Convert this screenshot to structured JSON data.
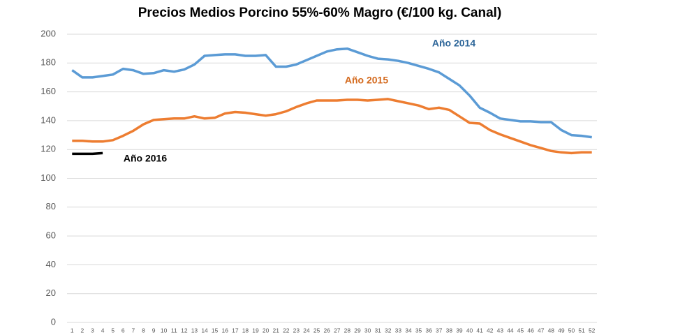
{
  "chart_data": {
    "type": "line",
    "title": "Precios Medios Porcino 55%-60%  Magro (€/100 kg. Canal)",
    "categories": [
      1,
      2,
      3,
      4,
      5,
      6,
      7,
      8,
      9,
      10,
      11,
      12,
      13,
      14,
      15,
      16,
      17,
      18,
      19,
      20,
      21,
      22,
      23,
      24,
      25,
      26,
      27,
      28,
      29,
      30,
      31,
      32,
      33,
      34,
      35,
      36,
      37,
      38,
      39,
      40,
      41,
      42,
      43,
      44,
      45,
      46,
      47,
      48,
      49,
      50,
      51,
      52
    ],
    "series": [
      {
        "name": "Año 2014",
        "color": "#5b9bd5",
        "label_color": "#2e6699",
        "values": [
          175,
          170,
          170,
          171,
          172,
          176,
          175,
          172.5,
          173,
          175,
          174,
          175.5,
          179,
          185,
          185.5,
          186,
          186,
          185,
          185,
          185.5,
          177.5,
          177.5,
          179,
          182,
          185,
          188,
          189.5,
          190,
          187.5,
          185,
          183,
          182.5,
          181.5,
          180,
          178,
          176,
          173.5,
          169,
          164.5,
          157.5,
          149,
          145.5,
          141.5,
          140.5,
          139.5,
          139.5,
          139,
          139,
          133.5,
          130,
          129.5,
          128.5
        ]
      },
      {
        "name": "Año 2015",
        "color": "#ed7d31",
        "label_color": "#d46a1e",
        "values": [
          126,
          126,
          125.5,
          125.5,
          126.5,
          129.5,
          133,
          137.5,
          140.5,
          141,
          141.5,
          141.5,
          143,
          141.5,
          142,
          145,
          146,
          145.5,
          144.5,
          143.5,
          144.5,
          146.5,
          149.5,
          152,
          154,
          154,
          154,
          154.5,
          154.5,
          154,
          154.5,
          155,
          153.5,
          152,
          150.5,
          148,
          149,
          147.5,
          143,
          138.5,
          138,
          133.5,
          130.5,
          128,
          125.5,
          123,
          121,
          119,
          118,
          117.5,
          118,
          118
        ]
      },
      {
        "name": "Año 2016",
        "color": "#000000",
        "label_color": "#000000",
        "values": [
          117,
          117,
          117,
          117.5,
          null,
          null,
          null,
          null,
          null,
          null,
          null,
          null,
          null,
          null,
          null,
          null,
          null,
          null,
          null,
          null,
          null,
          null,
          null,
          null,
          null,
          null,
          null,
          null,
          null,
          null,
          null,
          null,
          null,
          null,
          null,
          null,
          null,
          null,
          null,
          null,
          null,
          null,
          null,
          null,
          null,
          null,
          null,
          null,
          null,
          null,
          null,
          null
        ]
      }
    ],
    "ylim": [
      0,
      200
    ],
    "yticks": [
      0,
      20,
      40,
      60,
      80,
      100,
      120,
      140,
      160,
      180,
      200
    ],
    "grid": true
  }
}
